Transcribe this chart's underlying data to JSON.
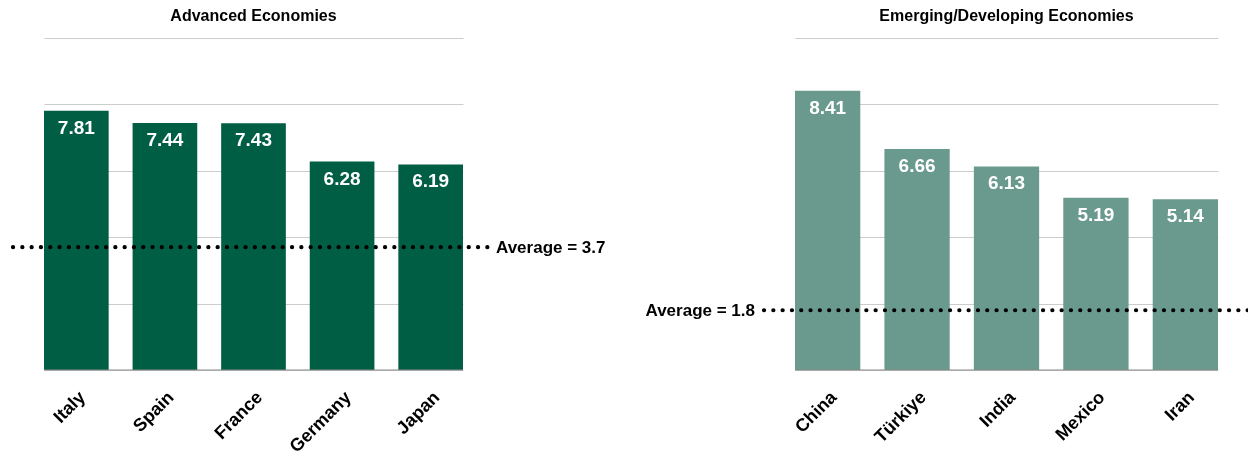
{
  "chart_data": [
    {
      "type": "bar",
      "title": "Advanced Economies",
      "categories": [
        "Italy",
        "Spain",
        "France",
        "Germany",
        "Japan"
      ],
      "values": [
        7.81,
        7.44,
        7.43,
        6.28,
        6.19
      ],
      "color": "#005e44",
      "ylim": [
        0,
        10
      ],
      "yticks": [
        {
          "value": 0,
          "label": null
        },
        {
          "value": 2,
          "label": null
        },
        {
          "value": 4,
          "label": null
        },
        {
          "value": 6,
          "label": null
        },
        {
          "value": 8,
          "label": null
        },
        {
          "value": 10,
          "label": null
        }
      ],
      "tick_labels": "x",
      "grid": "y",
      "data_labels": true,
      "ref_lines": [
        {
          "axis": "y",
          "value": 3.7,
          "label": "Average = 3.7",
          "line_style": "dotted",
          "color": "#000000"
        }
      ]
    },
    {
      "type": "bar",
      "title": "Emerging/Developing Economies",
      "categories": [
        "China",
        "Türkiye",
        "India",
        "Mexico",
        "Iran"
      ],
      "values": [
        8.41,
        6.66,
        6.13,
        5.19,
        5.14
      ],
      "color": "#6a9a8d",
      "ylim": [
        0,
        10
      ],
      "yticks": [
        {
          "value": 0,
          "label": null
        },
        {
          "value": 2,
          "label": null
        },
        {
          "value": 4,
          "label": null
        },
        {
          "value": 6,
          "label": null
        },
        {
          "value": 8,
          "label": null
        },
        {
          "value": 10,
          "label": null
        }
      ],
      "tick_labels": "x",
      "grid": "y",
      "data_labels": true,
      "ref_lines": [
        {
          "axis": "y",
          "value": 1.8,
          "label": "Average = 1.8",
          "line_style": "dotted",
          "color": "#000000"
        }
      ]
    }
  ]
}
